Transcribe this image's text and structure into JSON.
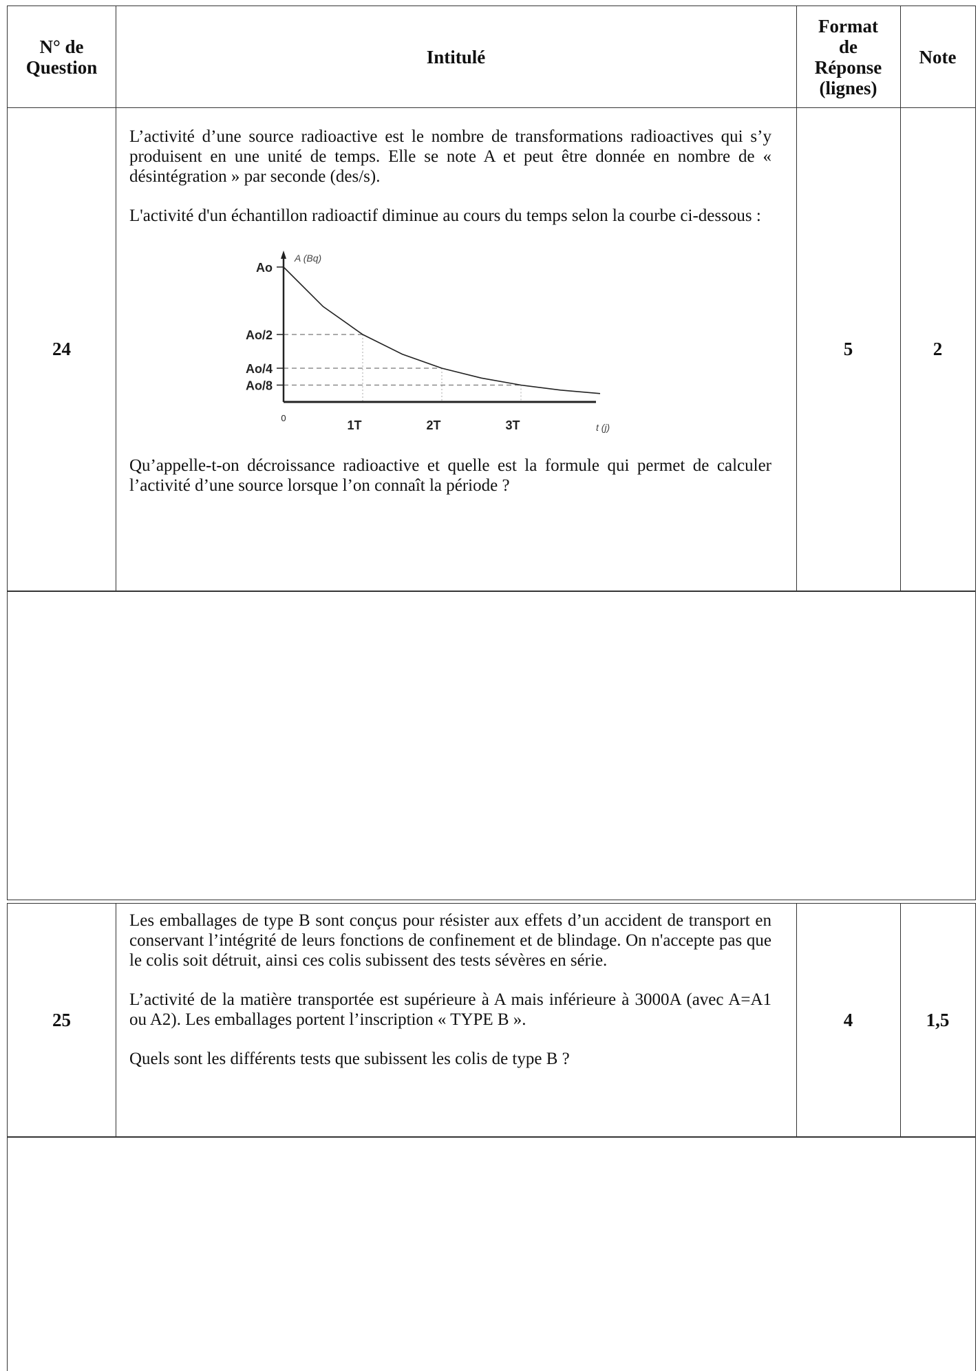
{
  "header": {
    "col_number": [
      "N° de",
      "Question"
    ],
    "col_title": "Intitulé",
    "col_format": [
      "Format",
      "de",
      "Réponse",
      "(lignes)"
    ],
    "col_note": "Note"
  },
  "questions": [
    {
      "number": "24",
      "paragraphs": [
        "L’activité d’une source radioactive est le nombre de transformations radioactives qui s’y produisent en une unité de temps. Elle se note A et peut être donnée en nombre de « désintégration » par seconde (des/s).",
        "L'activité d'un échantillon radioactif diminue au cours du temps selon la courbe ci-dessous :"
      ],
      "question": "Qu’appelle-t-on décroissance radioactive et quelle est la formule qui permet de calculer l’activité d’une source lorsque l’on connaît la période ?",
      "format_lines": "5",
      "note": "2"
    },
    {
      "number": "25",
      "paragraphs": [
        "Les emballages de type B sont conçus pour résister aux effets d’un accident de transport en conservant l’intégrité de leurs fonctions de confinement et de blindage. On n'accepte pas que le colis soit détruit, ainsi ces colis subissent des tests sévères en série.",
        "L’activité de la matière transportée est supérieure à A mais inférieure à 3000A (avec A=A1 ou A2). Les emballages portent l’inscription « TYPE B »."
      ],
      "question": "Quels sont les différents tests que subissent les colis de type B ?",
      "format_lines": "4",
      "note": "1,5"
    }
  ],
  "chart_data": {
    "type": "line",
    "title": "",
    "xlabel": "t (j)",
    "ylabel": "A (Bq)",
    "x_ticks": [
      "0",
      "1T",
      "2T",
      "3T"
    ],
    "y_ticks": [
      "Ao",
      "Ao/2",
      "Ao/4",
      "Ao/8"
    ],
    "x": [
      0,
      0.5,
      1,
      1.5,
      2,
      2.5,
      3,
      3.5,
      4
    ],
    "y": [
      1,
      0.707,
      0.5,
      0.354,
      0.25,
      0.177,
      0.125,
      0.088,
      0.0625
    ],
    "xlim": [
      0,
      4.3
    ],
    "ylim": [
      0,
      1.1
    ],
    "guide_lines": [
      {
        "x": 1,
        "y": 0.5
      },
      {
        "x": 2,
        "y": 0.25
      },
      {
        "x": 3,
        "y": 0.125
      }
    ],
    "grid": false
  }
}
